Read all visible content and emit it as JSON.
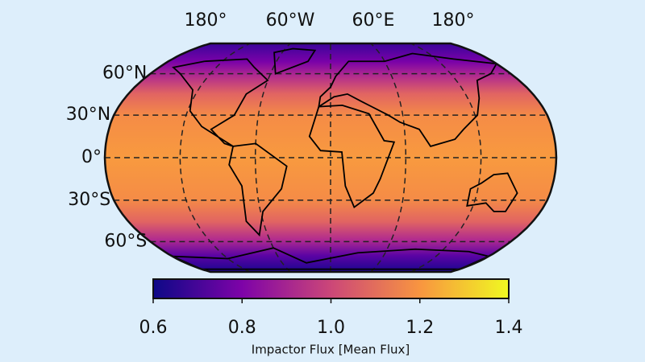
{
  "map": {
    "lon_labels": [
      "180°",
      "60°W",
      "60°E",
      "180°"
    ],
    "lat_labels": [
      "60°N",
      "30°N",
      "0°",
      "30°S",
      "60°S"
    ]
  },
  "colorbar": {
    "label": "Impactor Flux [Mean Flux]",
    "lim": [
      0.6,
      1.4
    ],
    "ticks": [
      0.6,
      0.8,
      {
        "value": 1,
        "label": "1.0"
      },
      1.2,
      1.4
    ]
  }
}
